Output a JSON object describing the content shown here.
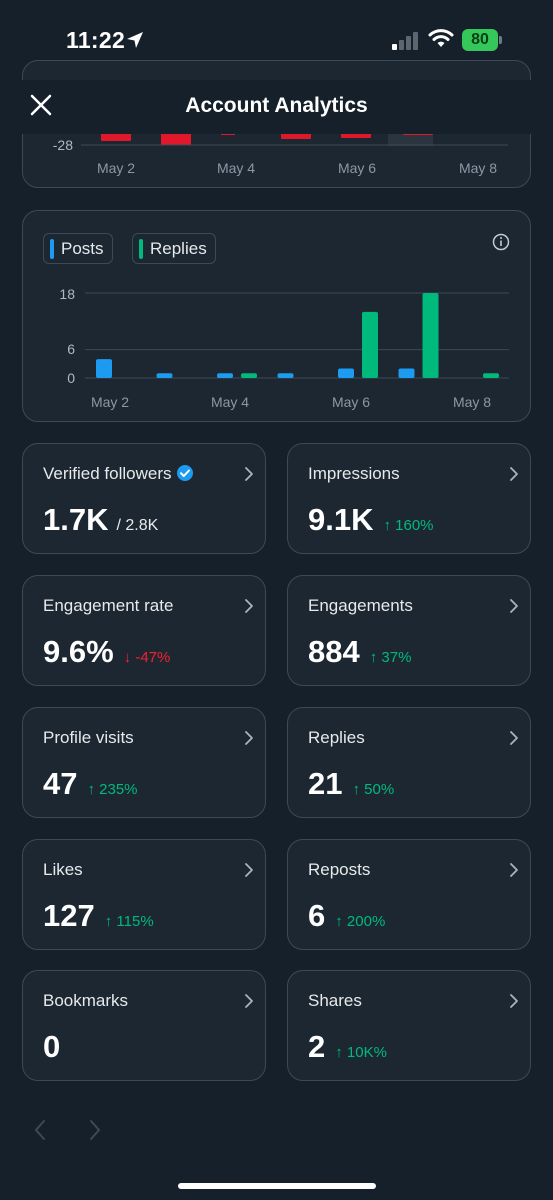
{
  "status_bar": {
    "time": "11:22",
    "battery": "80"
  },
  "header": {
    "title": "Account Analytics"
  },
  "top_chart": {
    "y_tick": "-28",
    "x_labels": [
      "May 2",
      "May 4",
      "May 6",
      "May 8"
    ]
  },
  "activity_chart": {
    "legend": [
      "Posts",
      "Replies"
    ],
    "y_ticks": [
      "18",
      "6",
      "0"
    ],
    "x_labels": [
      "May 2",
      "May 4",
      "May 6",
      "May 8"
    ]
  },
  "chart_data": {
    "type": "bar",
    "categories": [
      "May 2",
      "May 3",
      "May 4",
      "May 5",
      "May 6",
      "May 7",
      "May 8"
    ],
    "series": [
      {
        "name": "Posts",
        "values": [
          4,
          1,
          1,
          1,
          2,
          2,
          0
        ]
      },
      {
        "name": "Replies",
        "values": [
          0,
          0,
          1,
          0,
          14,
          18,
          1
        ]
      }
    ],
    "yticks": [
      0,
      6,
      18
    ],
    "ylim": [
      0,
      18
    ],
    "colors": {
      "Posts": "#1d9bf0",
      "Replies": "#00ba7c"
    },
    "grid": true,
    "legend": "top-left"
  },
  "metrics": [
    {
      "label": "Verified followers",
      "value": "1.7K",
      "sub": "/ 2.8K",
      "delta": "",
      "dir": "",
      "verified": true
    },
    {
      "label": "Impressions",
      "value": "9.1K",
      "sub": "",
      "delta": "↑ 160%",
      "dir": "up"
    },
    {
      "label": "Engagement rate",
      "value": "9.6%",
      "sub": "",
      "delta": "↓ -47%",
      "dir": "down"
    },
    {
      "label": "Engagements",
      "value": "884",
      "sub": "",
      "delta": "↑ 37%",
      "dir": "up"
    },
    {
      "label": "Profile visits",
      "value": "47",
      "sub": "",
      "delta": "↑ 235%",
      "dir": "up"
    },
    {
      "label": "Replies",
      "value": "21",
      "sub": "",
      "delta": "↑ 50%",
      "dir": "up"
    },
    {
      "label": "Likes",
      "value": "127",
      "sub": "",
      "delta": "↑ 115%",
      "dir": "up"
    },
    {
      "label": "Reposts",
      "value": "6",
      "sub": "",
      "delta": "↑ 200%",
      "dir": "up"
    },
    {
      "label": "Bookmarks",
      "value": "0",
      "sub": "",
      "delta": "",
      "dir": ""
    },
    {
      "label": "Shares",
      "value": "2",
      "sub": "",
      "delta": "↑ 10K%",
      "dir": "up"
    }
  ],
  "colors": {
    "background": "#15202b",
    "card": "#1c2732",
    "border": "#3b4a57",
    "posts": "#1d9bf0",
    "replies": "#00ba7c",
    "negative": "#f4212e",
    "verified": "#1d9bf0"
  }
}
